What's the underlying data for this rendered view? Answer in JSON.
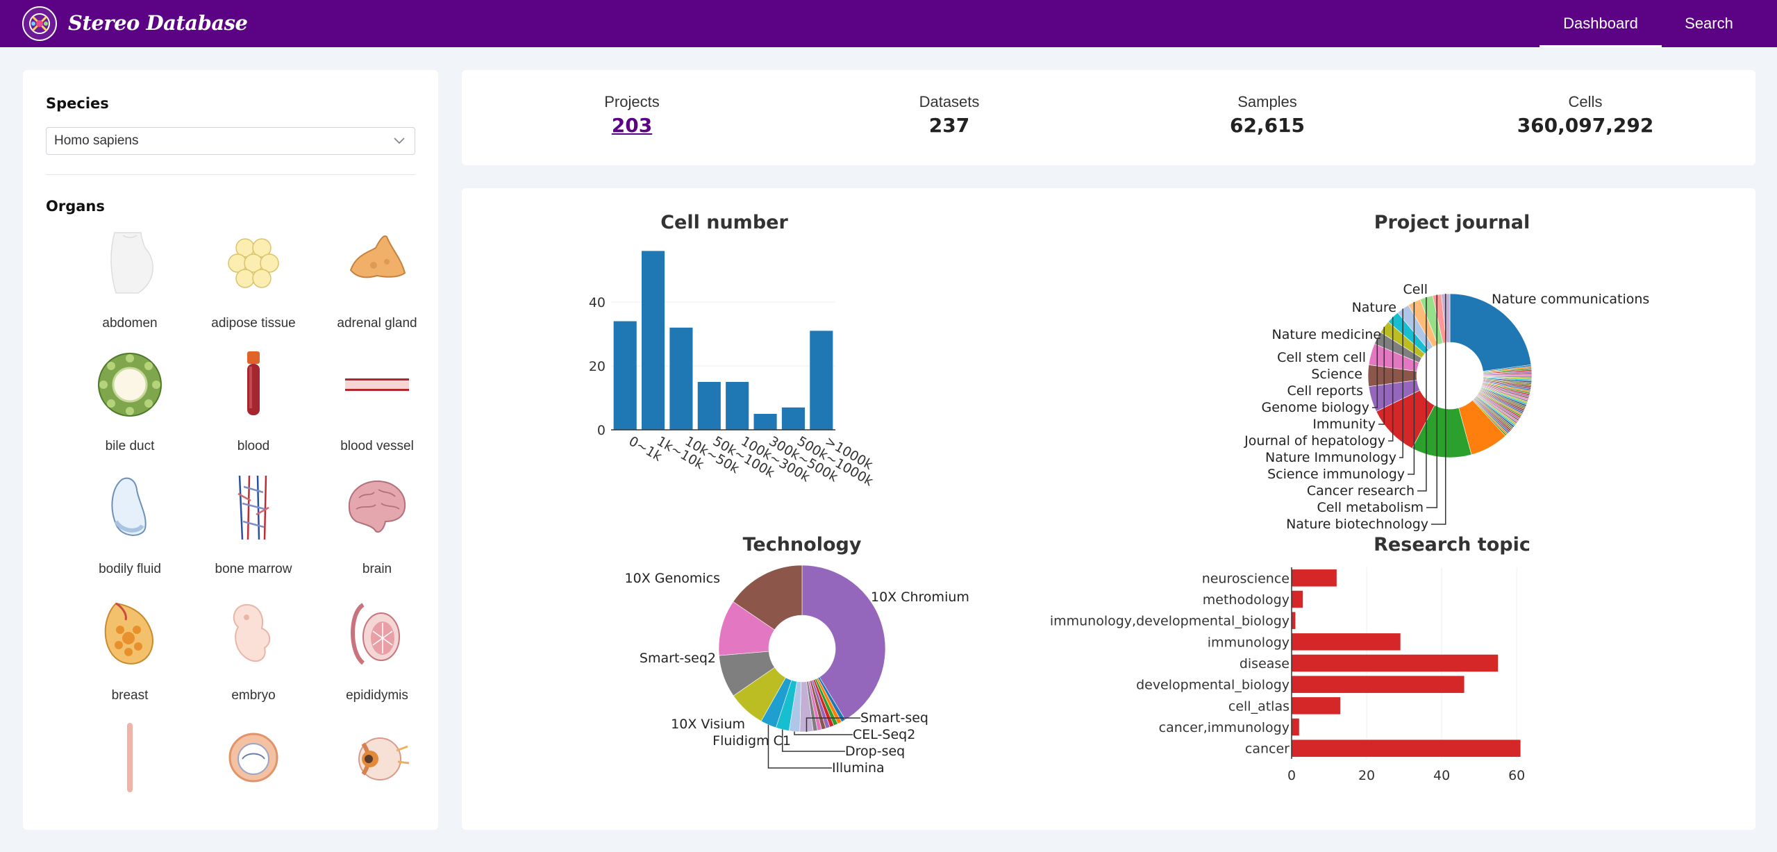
{
  "header": {
    "brand": "Stereo Database",
    "nav": [
      {
        "label": "Dashboard",
        "active": true
      },
      {
        "label": "Search",
        "active": false
      }
    ],
    "colors": {
      "header_bg": "#5b0384"
    }
  },
  "sidebar": {
    "species_title": "Species",
    "species_selected": "Homo sapiens",
    "organs_title": "Organs",
    "organs": [
      {
        "label": "abdomen",
        "icon": "abdomen-icon"
      },
      {
        "label": "adipose tissue",
        "icon": "adipose-tissue-icon"
      },
      {
        "label": "adrenal gland",
        "icon": "adrenal-gland-icon"
      },
      {
        "label": "bile duct",
        "icon": "bile-duct-icon"
      },
      {
        "label": "blood",
        "icon": "blood-icon"
      },
      {
        "label": "blood vessel",
        "icon": "blood-vessel-icon"
      },
      {
        "label": "bodily fluid",
        "icon": "bodily-fluid-icon"
      },
      {
        "label": "bone marrow",
        "icon": "bone-marrow-icon"
      },
      {
        "label": "brain",
        "icon": "brain-icon"
      },
      {
        "label": "breast",
        "icon": "breast-icon"
      },
      {
        "label": "embryo",
        "icon": "embryo-icon"
      },
      {
        "label": "epididymis",
        "icon": "epididymis-icon"
      },
      {
        "label": "",
        "icon": "esophagus-icon"
      },
      {
        "label": "",
        "icon": "ovary-icon"
      },
      {
        "label": "",
        "icon": "eye-icon"
      }
    ]
  },
  "stats": [
    {
      "label": "Projects",
      "value": "203",
      "link": true
    },
    {
      "label": "Datasets",
      "value": "237",
      "link": false
    },
    {
      "label": "Samples",
      "value": "62,615",
      "link": false
    },
    {
      "label": "Cells",
      "value": "360,097,292",
      "link": false
    }
  ],
  "chart_data": [
    {
      "type": "bar",
      "title": "Cell number",
      "categories": [
        "0~1k",
        "1k~10k",
        "10k~50k",
        "50k~100k",
        "100k~300k",
        "300k~500k",
        "500k~1000k",
        ">1000k"
      ],
      "values": [
        34,
        56,
        32,
        15,
        15,
        5,
        7,
        31
      ],
      "yticks": [
        0,
        20,
        40
      ],
      "ylim": [
        0,
        60
      ],
      "color": "#1f77b4",
      "grid": true
    },
    {
      "type": "pie",
      "title": "Project journal",
      "hole": true,
      "labels": [
        "Nature communications",
        "Cell",
        "Nature",
        "Nature medicine",
        "Cell stem cell",
        "Science",
        "Cell reports",
        "Genome biology",
        "Immunity",
        "Journal of hepatology",
        "Nature Immunology",
        "Science immunology",
        "Cancer research",
        "Cell metabolism",
        "Nature biotechnology"
      ],
      "values": [
        27,
        9,
        14,
        12,
        6,
        5,
        5,
        3,
        3,
        3,
        3,
        3,
        3,
        2,
        2
      ],
      "colors": [
        "#1f77b4",
        "#ff7f0e",
        "#2ca02c",
        "#d62728",
        "#9467bd",
        "#8c564b",
        "#e377c2",
        "#7f7f7f",
        "#bcbd22",
        "#17becf",
        "#aec7e8",
        "#ffbb78",
        "#98df8a",
        "#ff9896",
        "#c5b0d5"
      ],
      "other_slices": 48
    },
    {
      "type": "pie",
      "title": "Technology",
      "hole": true,
      "labels": [
        "10X Chromium",
        "Smart-seq",
        "CEL-Seq2",
        "Drop-seq",
        "Illumina",
        "Fluidigm C1",
        "10X Visium",
        "Smart-seq2",
        "10X Genomics"
      ],
      "values": [
        80,
        5,
        4,
        5,
        6,
        14,
        16,
        21,
        30
      ],
      "colors": [
        "#9467bd",
        "#c5b0d5",
        "#aec7e8",
        "#17becf",
        "#1f9fd0",
        "#bcbd22",
        "#7f7f7f",
        "#e377c2",
        "#8c564b"
      ],
      "other_slices": 8
    },
    {
      "type": "bar",
      "orientation": "horizontal",
      "title": "Research topic",
      "categories": [
        "neuroscience",
        "methodology",
        "immunology,developmental_biology",
        "immunology",
        "disease",
        "developmental_biology",
        "cell_atlas",
        "cancer,immunology",
        "cancer"
      ],
      "values": [
        12,
        3,
        1,
        29,
        55,
        46,
        13,
        2,
        61
      ],
      "xticks": [
        0,
        20,
        40,
        60
      ],
      "xlim": [
        0,
        62
      ],
      "color": "#d62728",
      "grid": true
    }
  ]
}
